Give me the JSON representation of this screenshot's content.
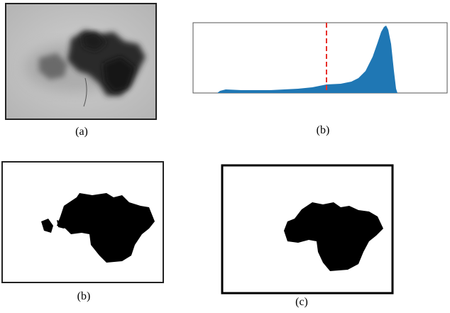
{
  "panels": [
    {
      "label": "(a)"
    },
    {
      "label": "(b)"
    },
    {
      "label": "(b)"
    },
    {
      "label": "(c)"
    }
  ]
}
